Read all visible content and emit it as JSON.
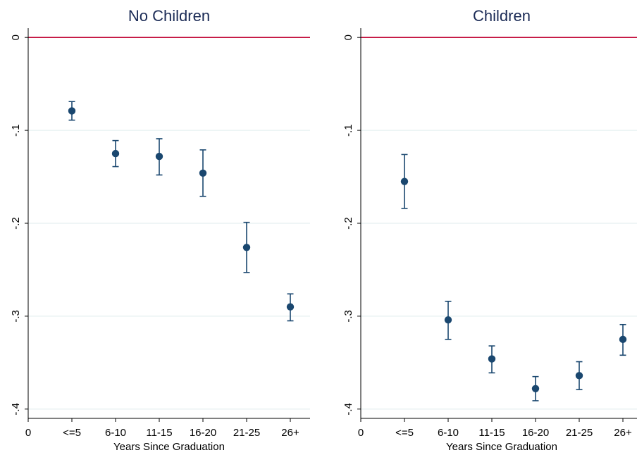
{
  "colors": {
    "background": "#ffffff",
    "marker": "#1a476f",
    "reference_line": "#c10534",
    "grid": "#eaf2f3",
    "axis": "#000000",
    "title": "#1a2a55"
  },
  "chart_data": [
    {
      "type": "scatter",
      "title": "No Children",
      "xlabel": "Years Since Graduation",
      "ylabel": "",
      "x_ticks": [
        "0",
        "<=5",
        "6-10",
        "11-15",
        "16-20",
        "21-25",
        "26+"
      ],
      "y_ticks": [
        "0",
        "-.1",
        "-.2",
        "-.3",
        "-.4"
      ],
      "ylim": [
        -0.41,
        0.01
      ],
      "grid": true,
      "reference_line": 0,
      "categories": [
        "<=5",
        "6-10",
        "11-15",
        "16-20",
        "21-25",
        "26+"
      ],
      "values": [
        -0.079,
        -0.125,
        -0.128,
        -0.146,
        -0.226,
        -0.29
      ],
      "ci_low": [
        -0.089,
        -0.139,
        -0.148,
        -0.171,
        -0.253,
        -0.305
      ],
      "ci_high": [
        -0.069,
        -0.111,
        -0.109,
        -0.121,
        -0.199,
        -0.276
      ]
    },
    {
      "type": "scatter",
      "title": "Children",
      "xlabel": "Years Since Graduation",
      "ylabel": "",
      "x_ticks": [
        "0",
        "<=5",
        "6-10",
        "11-15",
        "16-20",
        "21-25",
        "26+"
      ],
      "y_ticks": [
        "0",
        "-.1",
        "-.2",
        "-.3",
        "-.4"
      ],
      "ylim": [
        -0.41,
        0.01
      ],
      "grid": true,
      "reference_line": 0,
      "categories": [
        "<=5",
        "6-10",
        "11-15",
        "16-20",
        "21-25",
        "26+"
      ],
      "values": [
        -0.155,
        -0.304,
        -0.346,
        -0.378,
        -0.364,
        -0.325
      ],
      "ci_low": [
        -0.184,
        -0.325,
        -0.361,
        -0.391,
        -0.379,
        -0.342
      ],
      "ci_high": [
        -0.126,
        -0.284,
        -0.332,
        -0.365,
        -0.349,
        -0.309
      ]
    }
  ]
}
